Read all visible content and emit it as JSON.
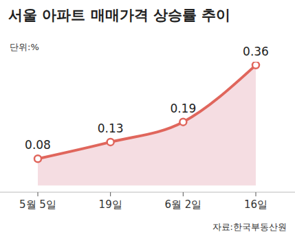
{
  "title": "서울 아파트 매매가격 상승률 추이",
  "unit": "단위:%",
  "source": "자료:한국부동산원",
  "chart_data": {
    "type": "line",
    "categories": [
      "5월 5일",
      "19일",
      "6월 2일",
      "16일"
    ],
    "values": [
      0.08,
      0.13,
      0.19,
      0.36
    ],
    "color": "#e0665c",
    "ylim": [
      -0.02,
      0.37
    ],
    "tick_labels": "x",
    "data_labels": true,
    "marker": "circle",
    "grid": false
  }
}
